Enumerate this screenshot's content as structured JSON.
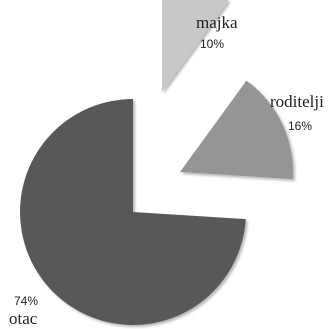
{
  "chart_data": {
    "type": "pie",
    "exploded": true,
    "categories": [
      "majka",
      "roditelji",
      "otac"
    ],
    "values": [
      10,
      16,
      74
    ],
    "value_labels": [
      "10%",
      "16%",
      "74%"
    ],
    "colors": [
      "#c8c8c8",
      "#959595",
      "#585858"
    ],
    "title": "",
    "legend": "none"
  }
}
